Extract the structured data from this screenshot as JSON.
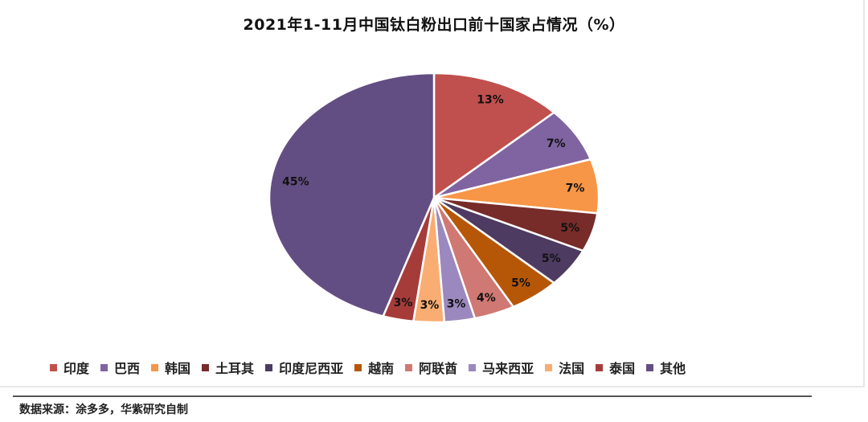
{
  "chart_data": {
    "type": "pie",
    "title": "2021年1-11月中国钛白粉出口前十国家占情况（%）",
    "categories": [
      "印度",
      "巴西",
      "韩国",
      "土耳其",
      "印度尼西亚",
      "越南",
      "阿联酋",
      "马来西亚",
      "法国",
      "泰国",
      "其他"
    ],
    "values": [
      13,
      7,
      7,
      5,
      5,
      5,
      4,
      3,
      3,
      3,
      45
    ],
    "labels": [
      "13%",
      "7%",
      "7%",
      "5%",
      "5%",
      "5%",
      "4%",
      "3%",
      "3%",
      "3%",
      "45%"
    ],
    "colors": [
      "#c0504d",
      "#8064a2",
      "#f79646",
      "#772c2a",
      "#4d3b62",
      "#b65708",
      "#d07873",
      "#9b88be",
      "#f9ad72",
      "#a63c3a",
      "#634e83"
    ],
    "start_angle": "12 o'clock",
    "direction": "clockwise",
    "legend_position": "bottom"
  },
  "title": "2021年1-11月中国钛白粉出口前十国家占情况（%）",
  "legend": [
    {
      "label": "印度",
      "color": "#c0504d"
    },
    {
      "label": "巴西",
      "color": "#8064a2"
    },
    {
      "label": "韩国",
      "color": "#f79646"
    },
    {
      "label": "土耳其",
      "color": "#772c2a"
    },
    {
      "label": "印度尼西亚",
      "color": "#4d3b62"
    },
    {
      "label": "越南",
      "color": "#b65708"
    },
    {
      "label": "阿联酋",
      "color": "#d07873"
    },
    {
      "label": "马来西亚",
      "color": "#9b88be"
    },
    {
      "label": "法国",
      "color": "#f9ad72"
    },
    {
      "label": "泰国",
      "color": "#a63c3a"
    },
    {
      "label": "其他",
      "color": "#634e83"
    }
  ],
  "source": "数据来源：涂多多，华紫研究自制"
}
